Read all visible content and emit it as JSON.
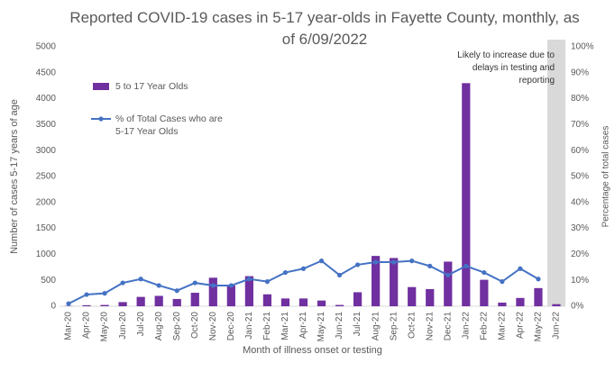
{
  "chart_data": {
    "type": "bar_line",
    "title": "Reported COVID-19 cases in 5-17 year-olds in Fayette County, monthly, as of 6/09/2022",
    "x_label": "Month of illness onset or testing",
    "y_label": "Number of cases 5-17 years of age",
    "y2_label": "Percentage of total cases",
    "annotation": {
      "text": "Likely to increase due to delays in testing and reporting",
      "shaded_category": "Jun-22",
      "color": "#d9d9d9"
    },
    "categories": [
      "Mar-20",
      "Apr-20",
      "May-20",
      "Jun-20",
      "Jul-20",
      "Aug-20",
      "Sep-20",
      "Oct-20",
      "Nov-20",
      "Dec-20",
      "Jan-21",
      "Feb-21",
      "Mar-21",
      "Apr-21",
      "May-21",
      "Jun-21",
      "Jul-21",
      "Aug-21",
      "Sep-21",
      "Oct-21",
      "Nov-21",
      "Dec-21",
      "Jan-22",
      "Feb-22",
      "Mar-22",
      "Apr-22",
      "May-22",
      "Jun-22"
    ],
    "series": [
      {
        "name": "5 to 17 Year Olds",
        "type": "bar",
        "color": "#7030a0",
        "values": [
          5,
          20,
          25,
          80,
          180,
          200,
          140,
          260,
          550,
          400,
          580,
          230,
          150,
          150,
          110,
          25,
          270,
          970,
          930,
          370,
          330,
          860,
          4300,
          510,
          70,
          160,
          350,
          40
        ]
      },
      {
        "name": "% of Total Cases who are 5-17 Year Olds",
        "type": "line",
        "axis": "y2",
        "color": "#4472c4",
        "values": [
          1,
          4.5,
          5,
          9,
          10.5,
          8,
          6,
          9,
          8,
          8,
          10.5,
          9.5,
          13,
          14.5,
          17.5,
          12,
          16,
          17,
          17,
          17.5,
          15.5,
          12,
          15.5,
          13,
          9.5,
          14.5,
          10.5,
          null
        ]
      }
    ],
    "ylim": [
      0,
      5000
    ],
    "yticks": [
      0,
      500,
      1000,
      1500,
      2000,
      2500,
      3000,
      3500,
      4000,
      4500,
      5000
    ],
    "y2lim": [
      0,
      100
    ],
    "y2ticks": [
      {
        "value": 0,
        "label": "0%"
      },
      {
        "value": 10,
        "label": "10%"
      },
      {
        "value": 20,
        "label": "20%"
      },
      {
        "value": 30,
        "label": "30%"
      },
      {
        "value": 40,
        "label": "40%"
      },
      {
        "value": 50,
        "label": "50%"
      },
      {
        "value": 60,
        "label": "60%"
      },
      {
        "value": 70,
        "label": "70%"
      },
      {
        "value": 80,
        "label": "80%"
      },
      {
        "value": 90,
        "label": "90%"
      },
      {
        "value": 100,
        "label": "100%"
      }
    ],
    "grid": false,
    "legend": "upper left"
  }
}
